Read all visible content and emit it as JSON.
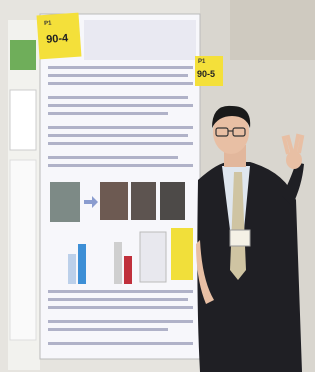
{
  "labels": [
    {
      "tag": "P1",
      "number": "90-4"
    },
    {
      "tag": "P1",
      "number": "90-5"
    }
  ]
}
